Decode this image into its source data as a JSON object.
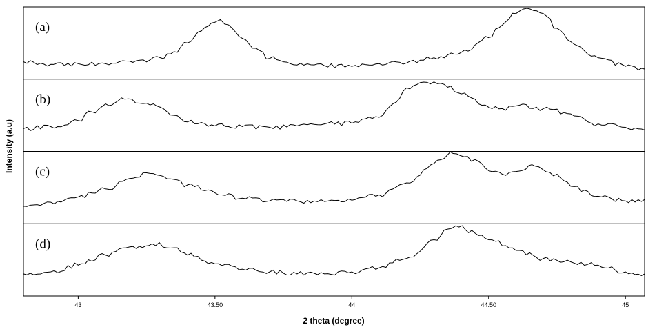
{
  "chart_data": {
    "type": "line",
    "xlabel": "2 theta (degree)",
    "ylabel": "Intensity (a.u)",
    "xlim": [
      42.8,
      45.07
    ],
    "ylim": [
      0,
      1
    ],
    "x_ticks": [
      {
        "value": 43,
        "label": "43"
      },
      {
        "value": 43.5,
        "label": "43.50"
      },
      {
        "value": 44,
        "label": "44"
      },
      {
        "value": 44.5,
        "label": "44.50"
      },
      {
        "value": 45,
        "label": "45"
      }
    ],
    "grid": false,
    "legend": "none",
    "line_color": "#000000",
    "panels": [
      {
        "label": "(a)",
        "peaks": [
          {
            "x": 43.52,
            "value": 0.83
          },
          {
            "x": 44.64,
            "value": 1.0
          }
        ],
        "baseline": 0.17,
        "x": [
          42.8,
          42.9,
          43.0,
          43.1,
          43.2,
          43.3,
          43.35,
          43.4,
          43.45,
          43.5,
          43.52,
          43.55,
          43.6,
          43.65,
          43.7,
          43.8,
          43.9,
          44.0,
          44.1,
          44.2,
          44.3,
          44.4,
          44.5,
          44.55,
          44.6,
          44.64,
          44.7,
          44.75,
          44.8,
          44.9,
          45.0,
          45.07
        ],
        "y": [
          0.2,
          0.16,
          0.17,
          0.17,
          0.19,
          0.26,
          0.35,
          0.48,
          0.66,
          0.79,
          0.83,
          0.75,
          0.55,
          0.4,
          0.25,
          0.15,
          0.14,
          0.13,
          0.17,
          0.18,
          0.26,
          0.34,
          0.56,
          0.75,
          0.92,
          1.0,
          0.92,
          0.7,
          0.5,
          0.26,
          0.13,
          0.09
        ]
      },
      {
        "label": "(b)",
        "peaks": [
          {
            "x": 43.17,
            "value": 0.72
          },
          {
            "x": 44.3,
            "value": 0.98
          },
          {
            "x": 44.62,
            "value": 0.62
          }
        ],
        "baseline": 0.28,
        "x": [
          42.8,
          42.9,
          43.0,
          43.05,
          43.1,
          43.17,
          43.25,
          43.3,
          43.35,
          43.4,
          43.5,
          43.6,
          43.7,
          43.8,
          43.9,
          44.0,
          44.1,
          44.15,
          44.2,
          44.25,
          44.3,
          44.35,
          44.4,
          44.5,
          44.55,
          44.6,
          44.7,
          44.8,
          44.9,
          45.0,
          45.07
        ],
        "y": [
          0.28,
          0.31,
          0.4,
          0.53,
          0.65,
          0.72,
          0.66,
          0.6,
          0.48,
          0.38,
          0.32,
          0.31,
          0.3,
          0.32,
          0.35,
          0.36,
          0.45,
          0.65,
          0.89,
          0.97,
          0.98,
          0.9,
          0.8,
          0.6,
          0.58,
          0.62,
          0.58,
          0.5,
          0.35,
          0.3,
          0.26
        ]
      },
      {
        "label": "(c)",
        "peaks": [
          {
            "x": 43.25,
            "value": 0.7
          },
          {
            "x": 44.37,
            "value": 0.99
          },
          {
            "x": 44.67,
            "value": 0.8
          }
        ],
        "baseline": 0.27,
        "x": [
          42.8,
          42.9,
          43.0,
          43.1,
          43.2,
          43.25,
          43.3,
          43.4,
          43.5,
          43.6,
          43.7,
          43.8,
          43.9,
          44.0,
          44.1,
          44.2,
          44.3,
          44.35,
          44.37,
          44.45,
          44.5,
          44.55,
          44.6,
          44.67,
          44.75,
          44.8,
          44.9,
          45.0,
          45.07
        ],
        "y": [
          0.2,
          0.26,
          0.34,
          0.46,
          0.62,
          0.7,
          0.66,
          0.52,
          0.4,
          0.32,
          0.28,
          0.28,
          0.27,
          0.29,
          0.37,
          0.55,
          0.84,
          0.97,
          0.99,
          0.9,
          0.73,
          0.68,
          0.72,
          0.8,
          0.68,
          0.5,
          0.35,
          0.28,
          0.3
        ]
      },
      {
        "label": "(d)",
        "peaks": [
          {
            "x": 43.27,
            "value": 0.72
          },
          {
            "x": 44.38,
            "value": 0.99
          }
        ],
        "baseline": 0.27,
        "x": [
          42.8,
          42.9,
          43.0,
          43.1,
          43.2,
          43.27,
          43.35,
          43.4,
          43.5,
          43.6,
          43.7,
          43.8,
          43.9,
          44.0,
          44.1,
          44.2,
          44.3,
          44.35,
          44.38,
          44.45,
          44.5,
          44.6,
          44.7,
          44.8,
          44.9,
          45.0,
          45.07
        ],
        "y": [
          0.27,
          0.3,
          0.4,
          0.55,
          0.68,
          0.72,
          0.66,
          0.55,
          0.42,
          0.34,
          0.3,
          0.27,
          0.27,
          0.3,
          0.36,
          0.5,
          0.78,
          0.94,
          0.99,
          0.88,
          0.78,
          0.62,
          0.5,
          0.45,
          0.4,
          0.3,
          0.27
        ]
      }
    ]
  }
}
